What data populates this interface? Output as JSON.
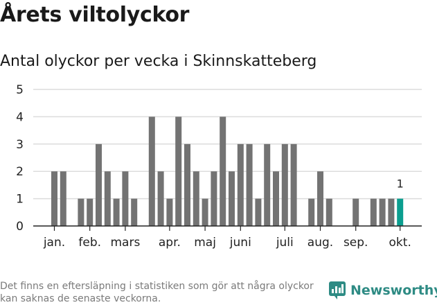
{
  "header": {
    "title": "Årets viltolyckor",
    "subtitle": "Antal olyckor per vecka i Skinnskatteberg"
  },
  "footer": {
    "note": "Det finns en eftersläpning i statistiken som gör att några olyckor kan saknas de senaste veckorna.",
    "brand": "Newsworthy"
  },
  "colors": {
    "bar": "#737373",
    "highlight": "#0b9e8f",
    "grid": "#dcdcdc",
    "brand": "#2e8b84"
  },
  "chart_data": {
    "type": "bar",
    "title": "Antal olyckor per vecka i Skinnskatteberg",
    "xlabel": "",
    "ylabel": "",
    "ylim": [
      0,
      5
    ],
    "yticks": [
      "0",
      "1",
      "2",
      "3",
      "4",
      "5"
    ],
    "x_tick_labels": [
      {
        "label": "jan.",
        "week": 1
      },
      {
        "label": "feb.",
        "week": 5
      },
      {
        "label": "mars",
        "week": 9
      },
      {
        "label": "apr.",
        "week": 14
      },
      {
        "label": "maj",
        "week": 18
      },
      {
        "label": "juni",
        "week": 22
      },
      {
        "label": "juli",
        "week": 27
      },
      {
        "label": "aug.",
        "week": 31
      },
      {
        "label": "sep.",
        "week": 35
      },
      {
        "label": "okt.",
        "week": 40
      }
    ],
    "weeks": [
      1,
      2,
      3,
      4,
      5,
      6,
      7,
      8,
      9,
      10,
      11,
      12,
      13,
      14,
      15,
      16,
      17,
      18,
      19,
      20,
      21,
      22,
      23,
      24,
      25,
      26,
      27,
      28,
      29,
      30,
      31,
      32,
      33,
      34,
      35,
      36,
      37,
      38,
      39,
      40
    ],
    "values": [
      2,
      2,
      0,
      1,
      1,
      3,
      2,
      1,
      2,
      1,
      0,
      4,
      2,
      1,
      4,
      3,
      2,
      1,
      2,
      4,
      2,
      3,
      3,
      1,
      3,
      2,
      3,
      3,
      0,
      1,
      2,
      1,
      0,
      0,
      1,
      0,
      1,
      1,
      1,
      1
    ],
    "highlight_index": 39,
    "highlight_label": "1"
  }
}
